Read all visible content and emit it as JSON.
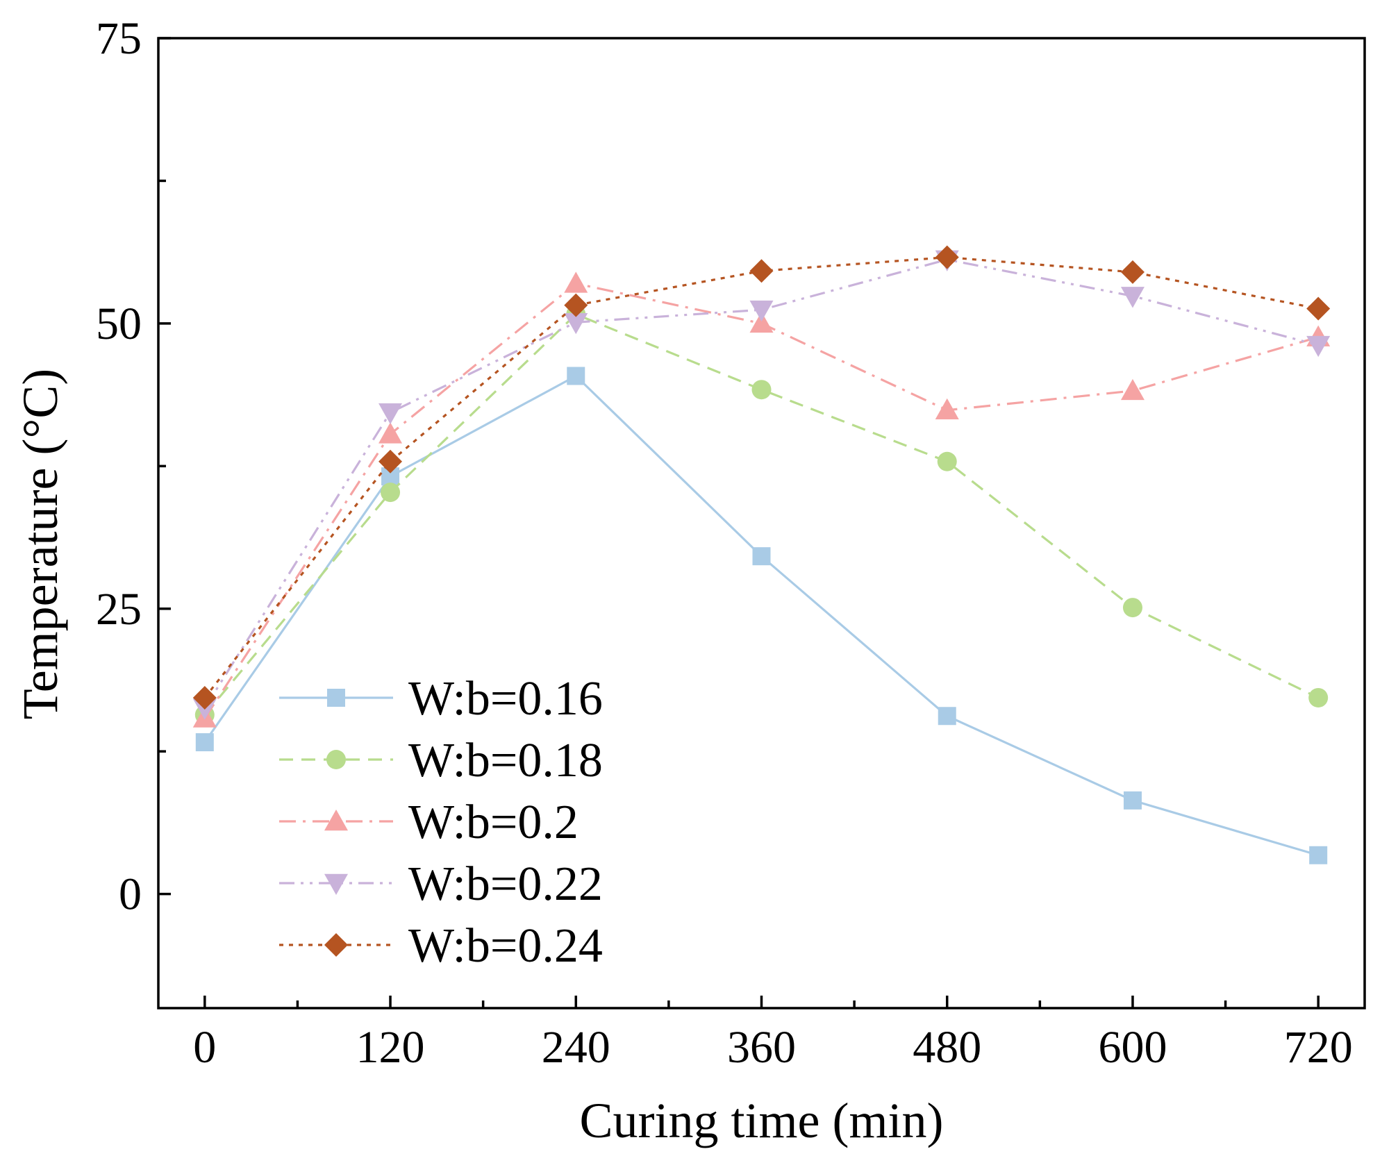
{
  "chart_data": {
    "type": "line",
    "title": "",
    "xlabel": "Curing time (min)",
    "ylabel": "Temperature (°C)",
    "x": [
      0,
      120,
      240,
      360,
      480,
      600,
      720
    ],
    "xticks": [
      0,
      120,
      240,
      360,
      480,
      600,
      720
    ],
    "xlim": [
      -30,
      750
    ],
    "yticks": [
      0,
      25,
      50,
      75
    ],
    "ylim": [
      -10,
      75
    ],
    "grid": false,
    "legend_position": "lower-left",
    "series": [
      {
        "name": "W:b=0.16",
        "color": "#a9cbe6",
        "marker": "square",
        "linestyle": "solid",
        "values": [
          13.3,
          36.6,
          45.4,
          29.6,
          15.6,
          8.2,
          3.4
        ]
      },
      {
        "name": "W:b=0.18",
        "color": "#b8dc8d",
        "marker": "circle",
        "linestyle": "dashed",
        "values": [
          15.7,
          35.2,
          50.8,
          44.2,
          37.9,
          25.1,
          17.2
        ]
      },
      {
        "name": "W:b=0.2",
        "color": "#f5a3a3",
        "marker": "triangle-up",
        "linestyle": "dashdot",
        "values": [
          15.4,
          40.3,
          53.5,
          50.0,
          42.4,
          44.1,
          48.8
        ]
      },
      {
        "name": "W:b=0.22",
        "color": "#c9b2da",
        "marker": "triangle-down",
        "linestyle": "dashdotdot",
        "values": [
          16.3,
          42.2,
          50.1,
          51.2,
          55.6,
          52.4,
          48.1
        ]
      },
      {
        "name": "W:b=0.24",
        "color": "#b55421",
        "marker": "diamond",
        "linestyle": "dotted",
        "values": [
          17.2,
          37.9,
          51.6,
          54.6,
          55.8,
          54.5,
          51.3
        ]
      }
    ]
  }
}
